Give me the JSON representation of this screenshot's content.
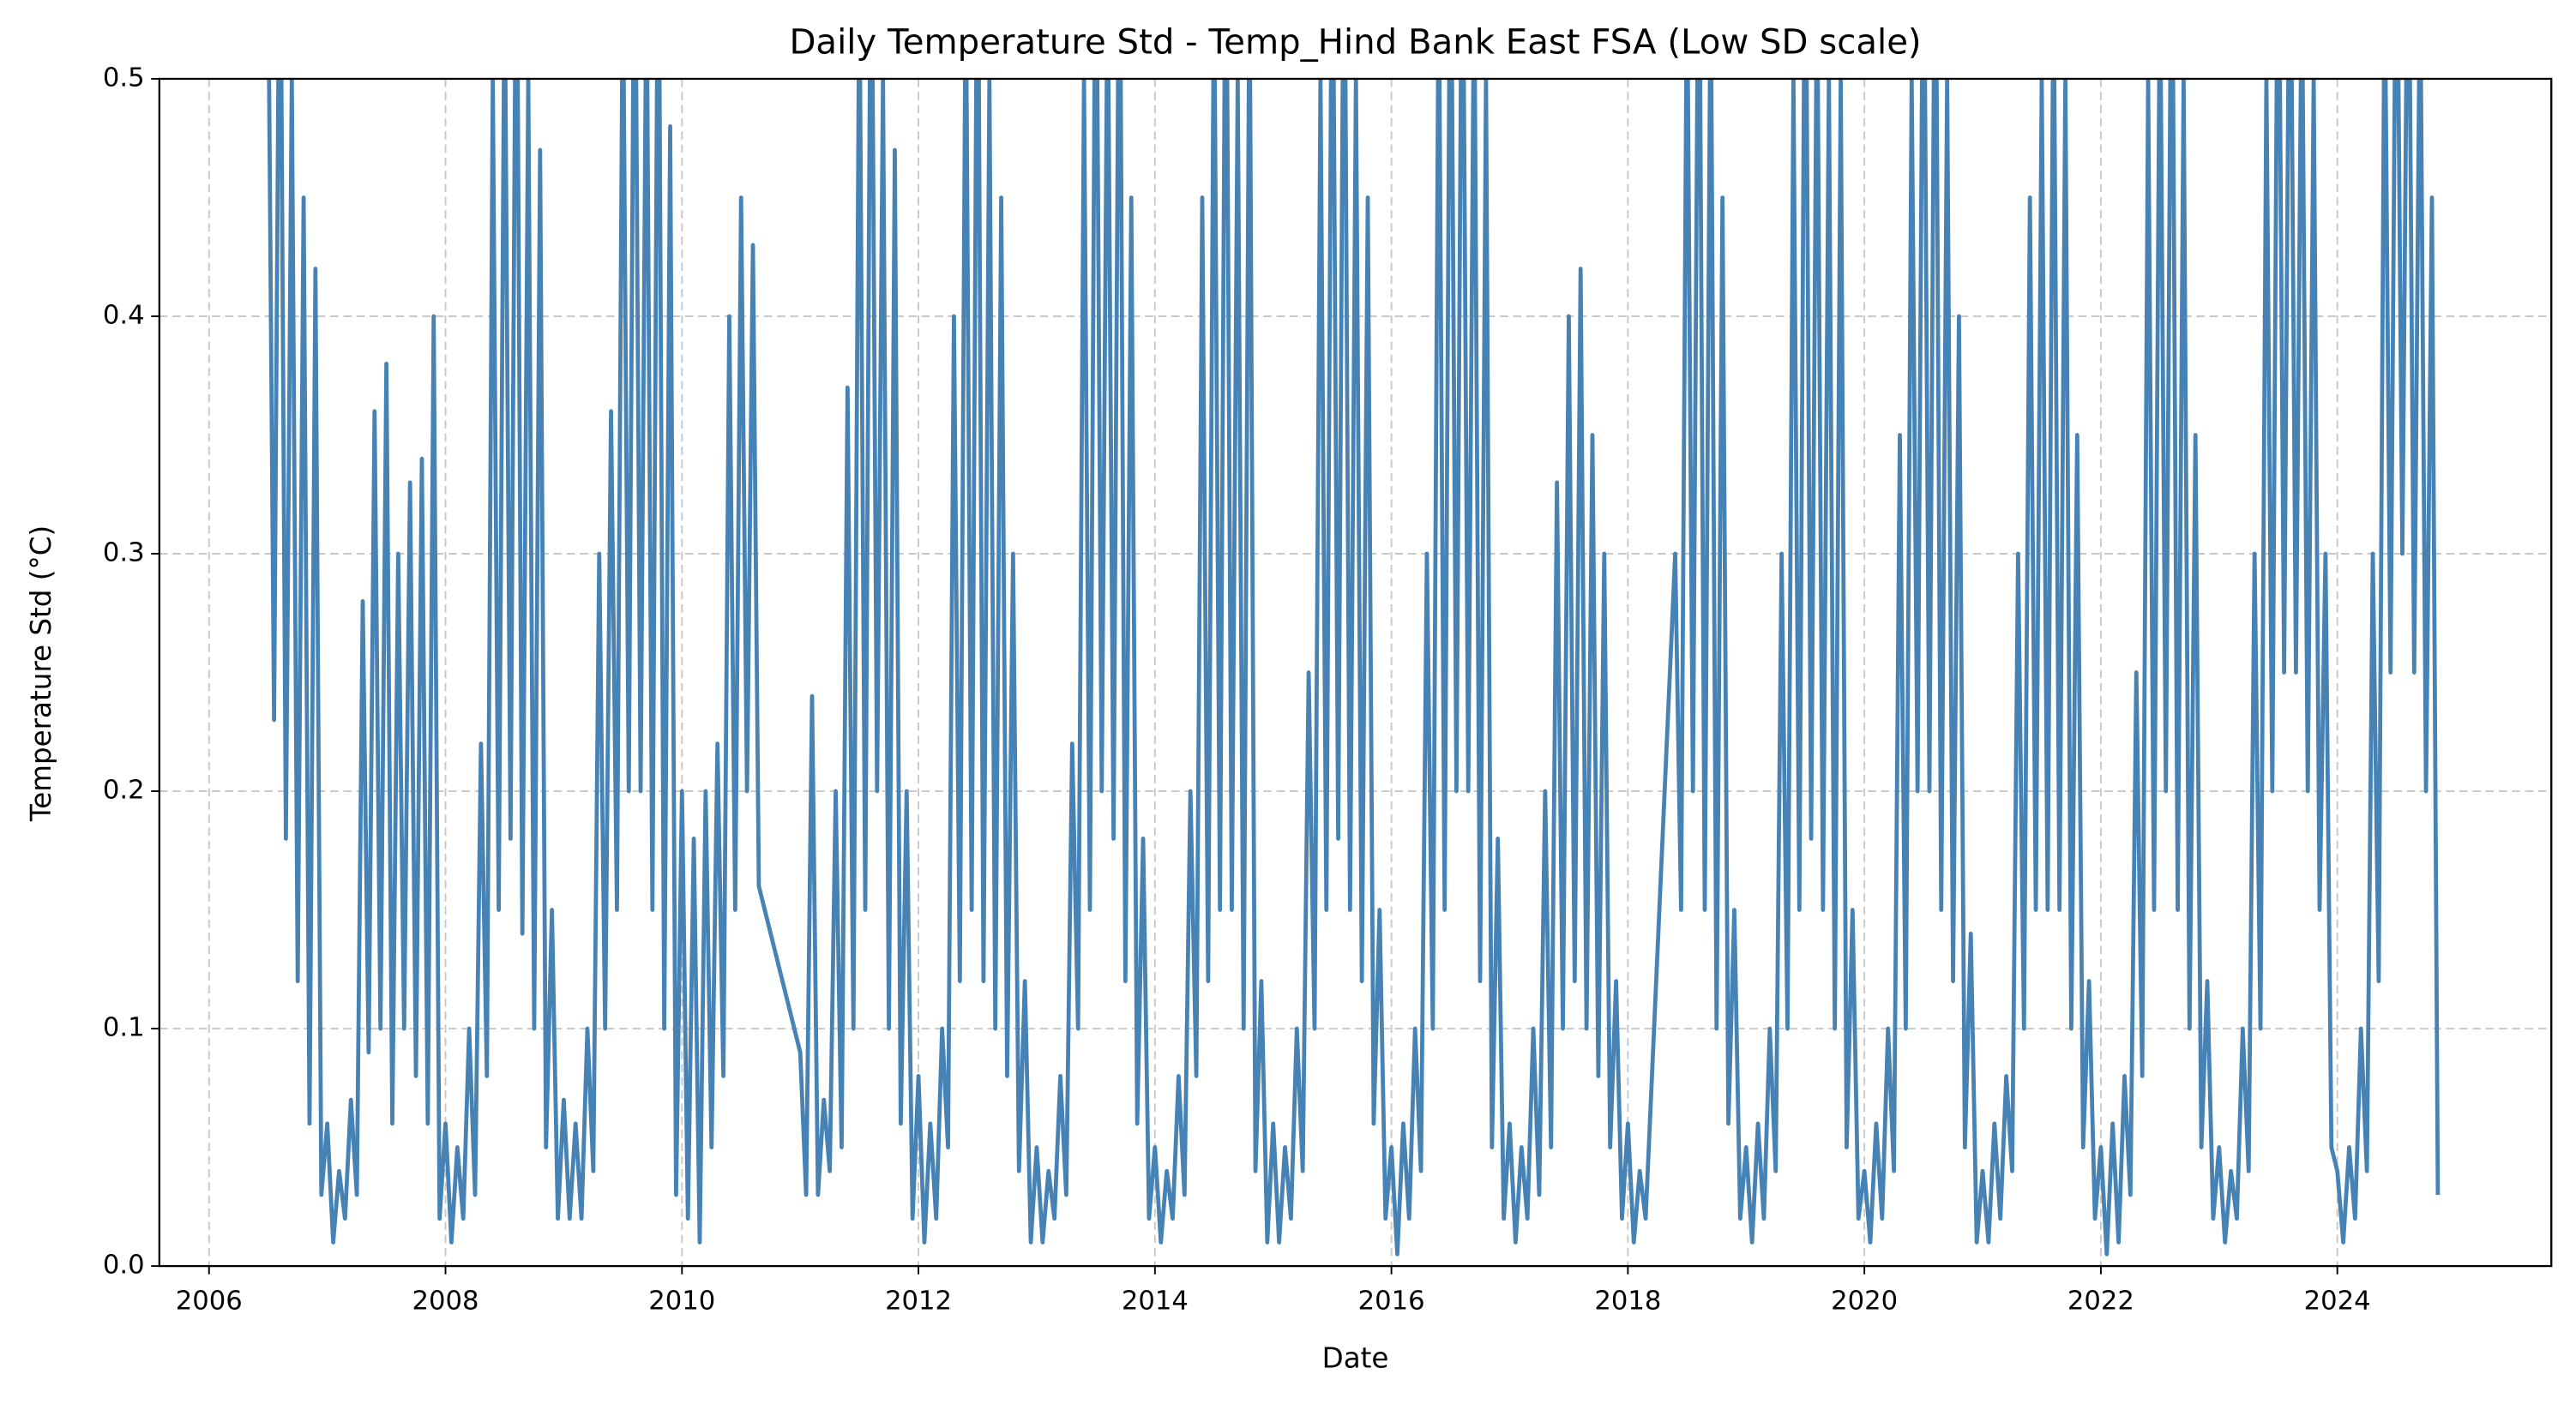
{
  "chart_data": {
    "type": "line",
    "title": "Daily Temperature Std - Temp_Hind Bank East FSA (Low SD scale)",
    "x_label": "Date",
    "y_label": "Temperature Std (°C)",
    "xlim": [
      2005.58,
      2025.81
    ],
    "xticks": [
      2006,
      2008,
      2010,
      2012,
      2014,
      2016,
      2018,
      2020,
      2022,
      2024
    ],
    "ylim": [
      0,
      0.5
    ],
    "yticks": [
      {
        "value": 0,
        "label": "0.0"
      },
      0.1,
      0.2,
      0.3,
      0.4,
      0.5
    ],
    "grid": true,
    "x": [
      2006.5,
      2006.55,
      2006.6,
      2006.65,
      2006.7,
      2006.75,
      2006.8,
      2006.85,
      2006.9,
      2006.95,
      2007,
      2007.05,
      2007.1,
      2007.15,
      2007.2,
      2007.25,
      2007.3,
      2007.35,
      2007.4,
      2007.45,
      2007.5,
      2007.55,
      2007.6,
      2007.65,
      2007.7,
      2007.75,
      2007.8,
      2007.85,
      2007.9,
      2007.95,
      2008,
      2008.05,
      2008.1,
      2008.15,
      2008.2,
      2008.25,
      2008.3,
      2008.35,
      2008.4,
      2008.45,
      2008.5,
      2008.55,
      2008.6,
      2008.65,
      2008.7,
      2008.75,
      2008.8,
      2008.85,
      2008.9,
      2008.95,
      2009,
      2009.05,
      2009.1,
      2009.15,
      2009.2,
      2009.25,
      2009.3,
      2009.35,
      2009.4,
      2009.45,
      2009.5,
      2009.55,
      2009.6,
      2009.65,
      2009.7,
      2009.75,
      2009.8,
      2009.85,
      2009.9,
      2009.95,
      2010,
      2010.05,
      2010.1,
      2010.15,
      2010.2,
      2010.25,
      2010.3,
      2010.35,
      2010.4,
      2010.45,
      2010.5,
      2010.55,
      2010.6,
      2010.65,
      2011,
      2011.05,
      2011.1,
      2011.15,
      2011.2,
      2011.25,
      2011.3,
      2011.35,
      2011.4,
      2011.45,
      2011.5,
      2011.55,
      2011.6,
      2011.65,
      2011.7,
      2011.75,
      2011.8,
      2011.85,
      2011.9,
      2011.95,
      2012,
      2012.05,
      2012.1,
      2012.15,
      2012.2,
      2012.25,
      2012.3,
      2012.35,
      2012.4,
      2012.45,
      2012.5,
      2012.55,
      2012.6,
      2012.65,
      2012.7,
      2012.75,
      2012.8,
      2012.85,
      2012.9,
      2012.95,
      2013,
      2013.05,
      2013.1,
      2013.15,
      2013.2,
      2013.25,
      2013.3,
      2013.35,
      2013.4,
      2013.45,
      2013.5,
      2013.55,
      2013.6,
      2013.65,
      2013.7,
      2013.75,
      2013.8,
      2013.85,
      2013.9,
      2013.95,
      2014,
      2014.05,
      2014.1,
      2014.15,
      2014.2,
      2014.25,
      2014.3,
      2014.35,
      2014.4,
      2014.45,
      2014.5,
      2014.55,
      2014.6,
      2014.65,
      2014.7,
      2014.75,
      2014.8,
      2014.85,
      2014.9,
      2014.95,
      2015,
      2015.05,
      2015.1,
      2015.15,
      2015.2,
      2015.25,
      2015.3,
      2015.35,
      2015.4,
      2015.45,
      2015.5,
      2015.55,
      2015.6,
      2015.65,
      2015.7,
      2015.75,
      2015.8,
      2015.85,
      2015.9,
      2015.95,
      2016,
      2016.05,
      2016.1,
      2016.15,
      2016.2,
      2016.25,
      2016.3,
      2016.35,
      2016.4,
      2016.45,
      2016.5,
      2016.55,
      2016.6,
      2016.65,
      2016.7,
      2016.75,
      2016.8,
      2016.85,
      2016.9,
      2016.95,
      2017,
      2017.05,
      2017.1,
      2017.15,
      2017.2,
      2017.25,
      2017.3,
      2017.35,
      2017.4,
      2017.45,
      2017.5,
      2017.55,
      2017.6,
      2017.65,
      2017.7,
      2017.75,
      2017.8,
      2017.85,
      2017.9,
      2017.95,
      2018,
      2018.05,
      2018.1,
      2018.15,
      2018.4,
      2018.45,
      2018.5,
      2018.55,
      2018.6,
      2018.65,
      2018.7,
      2018.75,
      2018.8,
      2018.85,
      2018.9,
      2018.95,
      2019,
      2019.05,
      2019.1,
      2019.15,
      2019.2,
      2019.25,
      2019.3,
      2019.35,
      2019.4,
      2019.45,
      2019.5,
      2019.55,
      2019.6,
      2019.65,
      2019.7,
      2019.75,
      2019.8,
      2019.85,
      2019.9,
      2019.95,
      2020,
      2020.05,
      2020.1,
      2020.15,
      2020.2,
      2020.25,
      2020.3,
      2020.35,
      2020.4,
      2020.45,
      2020.5,
      2020.55,
      2020.6,
      2020.65,
      2020.7,
      2020.75,
      2020.8,
      2020.85,
      2020.9,
      2020.95,
      2021,
      2021.05,
      2021.1,
      2021.15,
      2021.2,
      2021.25,
      2021.3,
      2021.35,
      2021.4,
      2021.45,
      2021.5,
      2021.55,
      2021.6,
      2021.65,
      2021.7,
      2021.75,
      2021.8,
      2021.85,
      2021.9,
      2021.95,
      2022,
      2022.05,
      2022.1,
      2022.15,
      2022.2,
      2022.25,
      2022.3,
      2022.35,
      2022.4,
      2022.45,
      2022.5,
      2022.55,
      2022.6,
      2022.65,
      2022.7,
      2022.75,
      2022.8,
      2022.85,
      2022.9,
      2022.95,
      2023,
      2023.05,
      2023.1,
      2023.15,
      2023.2,
      2023.25,
      2023.3,
      2023.35,
      2023.4,
      2023.45,
      2023.5,
      2023.55,
      2023.6,
      2023.65,
      2023.7,
      2023.75,
      2023.8,
      2023.85,
      2023.9,
      2023.95,
      2024,
      2024.05,
      2024.1,
      2024.15,
      2024.2,
      2024.25,
      2024.3,
      2024.35,
      2024.4,
      2024.45,
      2024.5,
      2024.55,
      2024.6,
      2024.65,
      2024.7,
      2024.75,
      2024.8,
      2024.85
    ],
    "series": [
      {
        "color": "#4682b4",
        "values": [
          0.55,
          0.23,
          0.6,
          0.18,
          0.5,
          0.12,
          0.45,
          0.06,
          0.42,
          0.03,
          0.06,
          0.01,
          0.04,
          0.02,
          0.07,
          0.03,
          0.28,
          0.09,
          0.36,
          0.1,
          0.38,
          0.06,
          0.3,
          0.1,
          0.33,
          0.08,
          0.34,
          0.06,
          0.4,
          0.02,
          0.06,
          0.01,
          0.05,
          0.02,
          0.1,
          0.03,
          0.22,
          0.08,
          0.5,
          0.15,
          0.55,
          0.18,
          0.6,
          0.14,
          0.5,
          0.1,
          0.47,
          0.05,
          0.15,
          0.02,
          0.07,
          0.02,
          0.06,
          0.02,
          0.1,
          0.04,
          0.3,
          0.1,
          0.36,
          0.15,
          0.55,
          0.2,
          0.6,
          0.2,
          0.55,
          0.15,
          0.6,
          0.1,
          0.48,
          0.03,
          0.2,
          0.02,
          0.18,
          0.01,
          0.2,
          0.05,
          0.22,
          0.08,
          0.4,
          0.15,
          0.45,
          0.2,
          0.43,
          0.16,
          0.09,
          0.03,
          0.24,
          0.03,
          0.07,
          0.04,
          0.2,
          0.05,
          0.37,
          0.1,
          0.55,
          0.15,
          0.6,
          0.2,
          0.5,
          0.1,
          0.47,
          0.06,
          0.2,
          0.02,
          0.08,
          0.01,
          0.06,
          0.02,
          0.1,
          0.05,
          0.4,
          0.12,
          0.55,
          0.15,
          0.6,
          0.12,
          0.5,
          0.1,
          0.45,
          0.08,
          0.3,
          0.04,
          0.12,
          0.01,
          0.05,
          0.01,
          0.04,
          0.02,
          0.08,
          0.03,
          0.22,
          0.1,
          0.5,
          0.15,
          0.6,
          0.2,
          0.55,
          0.18,
          0.6,
          0.12,
          0.45,
          0.06,
          0.18,
          0.02,
          0.05,
          0.01,
          0.04,
          0.02,
          0.08,
          0.03,
          0.2,
          0.08,
          0.45,
          0.12,
          0.55,
          0.15,
          0.6,
          0.15,
          0.5,
          0.1,
          0.55,
          0.04,
          0.12,
          0.01,
          0.06,
          0.01,
          0.05,
          0.02,
          0.1,
          0.04,
          0.25,
          0.1,
          0.5,
          0.15,
          0.6,
          0.18,
          0.6,
          0.15,
          0.5,
          0.12,
          0.45,
          0.06,
          0.15,
          0.02,
          0.05,
          0.005,
          0.06,
          0.02,
          0.1,
          0.04,
          0.3,
          0.1,
          0.55,
          0.15,
          0.6,
          0.2,
          0.6,
          0.2,
          0.55,
          0.12,
          0.5,
          0.05,
          0.18,
          0.02,
          0.06,
          0.01,
          0.05,
          0.02,
          0.1,
          0.03,
          0.2,
          0.05,
          0.33,
          0.1,
          0.4,
          0.12,
          0.42,
          0.1,
          0.35,
          0.08,
          0.3,
          0.05,
          0.12,
          0.02,
          0.06,
          0.01,
          0.04,
          0.02,
          0.3,
          0.15,
          0.55,
          0.2,
          0.6,
          0.15,
          0.55,
          0.1,
          0.45,
          0.06,
          0.15,
          0.02,
          0.05,
          0.01,
          0.06,
          0.02,
          0.1,
          0.04,
          0.3,
          0.1,
          0.5,
          0.15,
          0.6,
          0.18,
          0.55,
          0.15,
          0.5,
          0.1,
          0.5,
          0.05,
          0.15,
          0.02,
          0.04,
          0.01,
          0.06,
          0.02,
          0.1,
          0.04,
          0.35,
          0.1,
          0.5,
          0.2,
          0.6,
          0.2,
          0.6,
          0.15,
          0.5,
          0.12,
          0.4,
          0.05,
          0.14,
          0.01,
          0.04,
          0.01,
          0.06,
          0.02,
          0.08,
          0.04,
          0.3,
          0.1,
          0.45,
          0.15,
          0.5,
          0.15,
          0.55,
          0.15,
          0.5,
          0.1,
          0.35,
          0.05,
          0.12,
          0.02,
          0.05,
          0.005,
          0.06,
          0.01,
          0.08,
          0.03,
          0.25,
          0.08,
          0.5,
          0.15,
          0.55,
          0.2,
          0.6,
          0.15,
          0.5,
          0.1,
          0.35,
          0.05,
          0.12,
          0.02,
          0.05,
          0.01,
          0.04,
          0.02,
          0.1,
          0.04,
          0.3,
          0.1,
          0.5,
          0.2,
          0.6,
          0.25,
          0.6,
          0.25,
          0.55,
          0.2,
          0.5,
          0.15,
          0.3,
          0.05,
          0.04,
          0.01,
          0.05,
          0.02,
          0.1,
          0.04,
          0.3,
          0.12,
          0.55,
          0.25,
          0.6,
          0.3,
          0.6,
          0.25,
          0.55,
          0.2,
          0.45,
          0.03
        ]
      }
    ]
  }
}
